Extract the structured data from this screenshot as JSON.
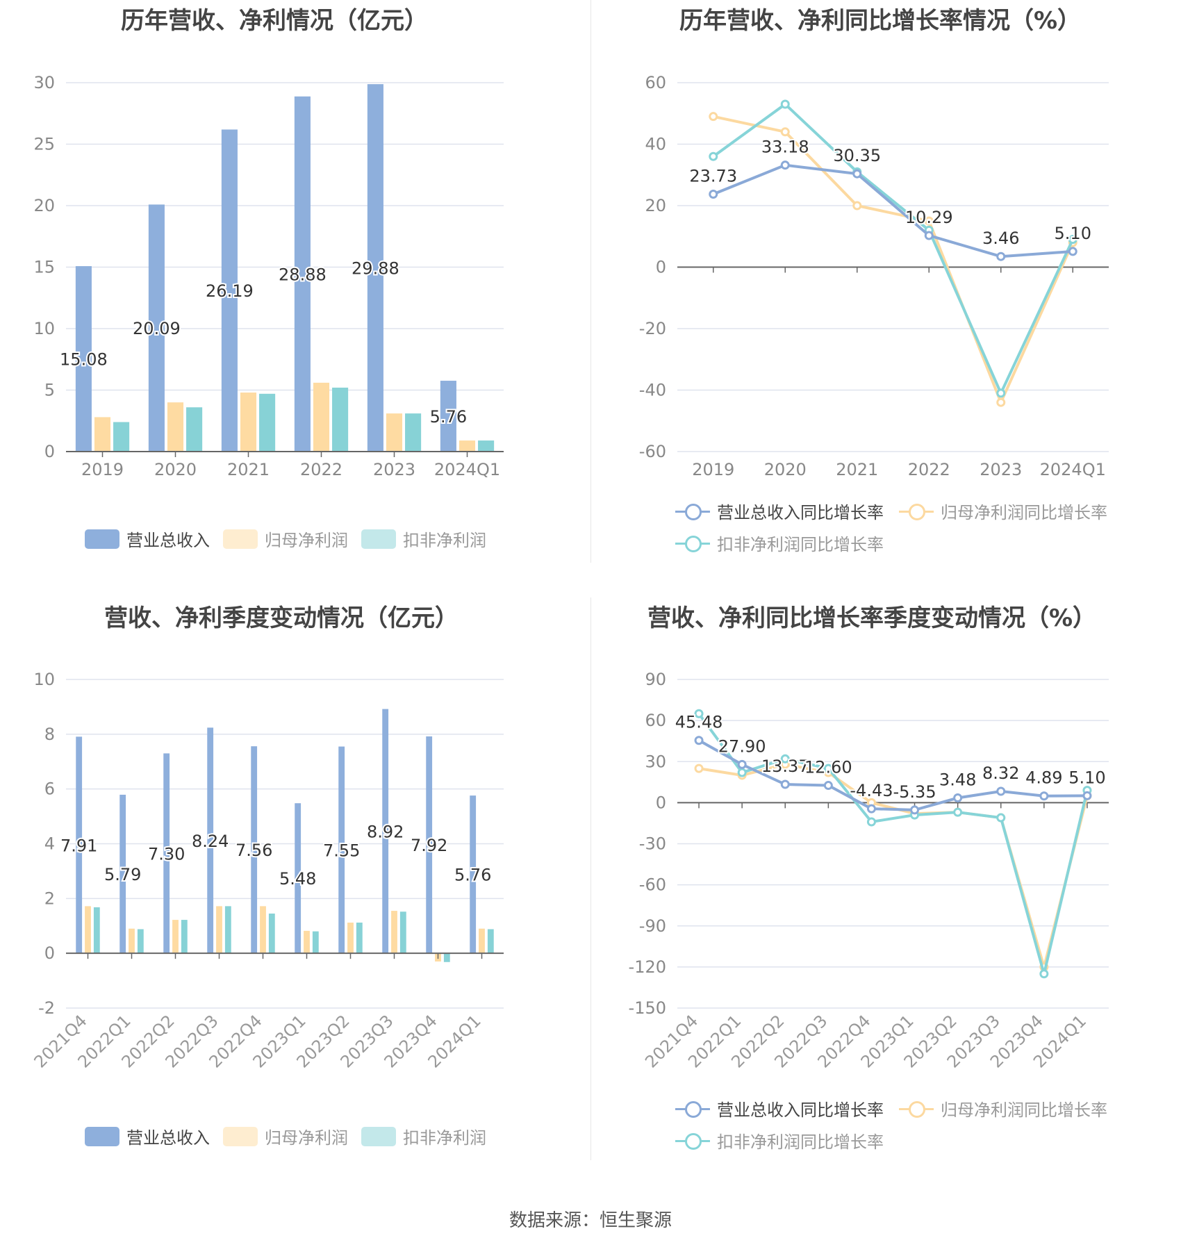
{
  "source": "数据来源：恒生聚源",
  "colors": {
    "revenue": "#8eafdc",
    "net_profit": "#fedba2",
    "deducted_profit": "#87d2d6",
    "revenue_line": "#8aa9d7",
    "net_profit_line": "#fcd9a0",
    "deducted_line": "#86d4d8",
    "grid": "#dfe3ee",
    "axis_text": "#888888"
  },
  "charts": [
    {
      "title": "历年营收、净利情况（亿元）",
      "legend": [
        "营业总收入",
        "归母净利润",
        "扣非净利润"
      ]
    },
    {
      "title": "历年营收、净利同比增长率情况（%）",
      "legend": [
        "营业总收入同比增长率",
        "归母净利润同比增长率",
        "扣非净利润同比增长率"
      ]
    },
    {
      "title": "营收、净利季度变动情况（亿元）",
      "legend": [
        "营业总收入",
        "归母净利润",
        "扣非净利润"
      ]
    },
    {
      "title": "营收、净利同比增长率季度变动情况（%）",
      "legend": [
        "营业总收入同比增长率",
        "归母净利润同比增长率",
        "扣非净利润同比增长率"
      ]
    }
  ],
  "chart_data": [
    {
      "type": "bar",
      "title": "历年营收、净利情况（亿元）",
      "categories": [
        "2019",
        "2020",
        "2021",
        "2022",
        "2023",
        "2024Q1"
      ],
      "ylim": [
        0,
        30
      ],
      "yticks": [
        0,
        5,
        10,
        15,
        20,
        25,
        30
      ],
      "series": [
        {
          "name": "营业总收入",
          "values": [
            15.08,
            20.09,
            26.19,
            28.88,
            29.88,
            5.76
          ],
          "labels": [
            "15.08",
            "20.09",
            "26.19",
            "28.88",
            "29.88",
            "5.76"
          ]
        },
        {
          "name": "归母净利润",
          "values": [
            2.8,
            4.0,
            4.8,
            5.6,
            3.1,
            0.9
          ]
        },
        {
          "name": "扣非净利润",
          "values": [
            2.4,
            3.6,
            4.7,
            5.2,
            3.1,
            0.9
          ]
        }
      ]
    },
    {
      "type": "line",
      "title": "历年营收、净利同比增长率情况（%）",
      "categories": [
        "2019",
        "2020",
        "2021",
        "2022",
        "2023",
        "2024Q1"
      ],
      "ylim": [
        -60,
        60
      ],
      "yticks": [
        -60,
        -40,
        -20,
        0,
        20,
        40,
        60
      ],
      "series": [
        {
          "name": "营业总收入同比增长率",
          "values": [
            23.73,
            33.18,
            30.35,
            10.29,
            3.46,
            5.1
          ],
          "labels": [
            "23.73",
            "33.18",
            "30.35",
            "10.29",
            "3.46",
            "5.10"
          ]
        },
        {
          "name": "归母净利润同比增长率",
          "values": [
            49,
            44,
            20,
            15,
            -44,
            8
          ]
        },
        {
          "name": "扣非净利润同比增长率",
          "values": [
            36,
            53,
            31,
            12,
            -41,
            9
          ]
        }
      ]
    },
    {
      "type": "bar",
      "title": "营收、净利季度变动情况（亿元）",
      "categories": [
        "2021Q4",
        "2022Q1",
        "2022Q2",
        "2022Q3",
        "2022Q4",
        "2023Q1",
        "2023Q2",
        "2023Q3",
        "2023Q4",
        "2024Q1"
      ],
      "ylim": [
        -2,
        10
      ],
      "yticks": [
        -2,
        0,
        2,
        4,
        6,
        8,
        10
      ],
      "series": [
        {
          "name": "营业总收入",
          "values": [
            7.91,
            5.79,
            7.3,
            8.24,
            7.56,
            5.48,
            7.55,
            8.92,
            7.92,
            5.76
          ],
          "labels": [
            "7.91",
            "5.79",
            "7.30",
            "8.24",
            "7.56",
            "5.48",
            "7.55",
            "8.92",
            "7.92",
            "5.76"
          ]
        },
        {
          "name": "归母净利润",
          "values": [
            1.72,
            0.9,
            1.22,
            1.72,
            1.72,
            0.82,
            1.12,
            1.55,
            -0.3,
            0.9
          ]
        },
        {
          "name": "扣非净利润",
          "values": [
            1.68,
            0.88,
            1.22,
            1.72,
            1.45,
            0.8,
            1.12,
            1.52,
            -0.32,
            0.88
          ]
        }
      ]
    },
    {
      "type": "line",
      "title": "营收、净利同比增长率季度变动情况（%）",
      "categories": [
        "2021Q4",
        "2022Q1",
        "2022Q2",
        "2022Q3",
        "2022Q4",
        "2023Q1",
        "2023Q2",
        "2023Q3",
        "2023Q4",
        "2024Q1"
      ],
      "ylim": [
        -150,
        90
      ],
      "yticks": [
        -150,
        -120,
        -90,
        -60,
        -30,
        0,
        30,
        60,
        90
      ],
      "series": [
        {
          "name": "营业总收入同比增长率",
          "values": [
            45.48,
            27.9,
            13.37,
            12.6,
            -4.43,
            -5.35,
            3.48,
            8.32,
            4.89,
            5.1
          ],
          "labels": [
            "45.48",
            "27.90",
            "13.37",
            "12.60",
            "-4.43",
            "-5.35",
            "3.48",
            "8.32",
            "4.89",
            "5.10"
          ]
        },
        {
          "name": "归母净利润同比增长率",
          "values": [
            25,
            20,
            28,
            22,
            0,
            -8,
            -7,
            -11,
            -120,
            5
          ]
        },
        {
          "name": "扣非净利润同比增长率",
          "values": [
            65,
            22,
            32,
            25,
            -14,
            -9,
            -7,
            -11,
            -125,
            9
          ]
        }
      ]
    }
  ]
}
